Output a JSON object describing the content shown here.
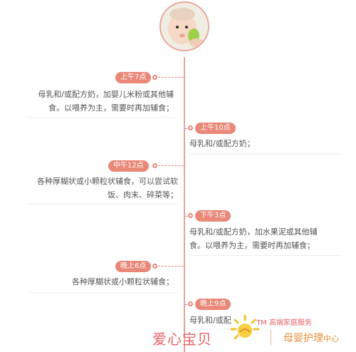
{
  "timeline": [
    {
      "time": "上午7点",
      "lines": [
        "母乳和/或配方奶，加婴儿米粉或其他辅",
        "食。以喂养为主，需要时再加辅食；"
      ]
    },
    {
      "time": "上午10点",
      "lines": [
        "母乳和/或配方奶；"
      ]
    },
    {
      "time": "中午12点",
      "lines": [
        "各种厚糊状或小颗粒状辅食，可以尝试软",
        "饭、肉末、碎菜等；"
      ]
    },
    {
      "time": "下午3点",
      "lines": [
        "母乳和/或配方奶，加水果泥或其他辅",
        "食。以喂养为主，需要时再加辅食；"
      ]
    },
    {
      "time": "晚上6点",
      "lines": [
        "各种厚糊状或小颗粒状辅食；"
      ]
    },
    {
      "time": "晚上9点",
      "lines": [
        "母乳和/或配"
      ]
    }
  ],
  "watermark": {
    "brand_left": "爱心宝贝",
    "tm_text": "TM 高端家庭服务",
    "brand_right_main": "母婴护理",
    "brand_right_small": "中心"
  },
  "colors": {
    "accent": "#e98878",
    "line": "#e2a39a",
    "brand_red": "#ea5f67",
    "brand_orange": "#e6903a"
  },
  "icons": {
    "avatar": "baby-photo",
    "logo": "sun-logo"
  }
}
